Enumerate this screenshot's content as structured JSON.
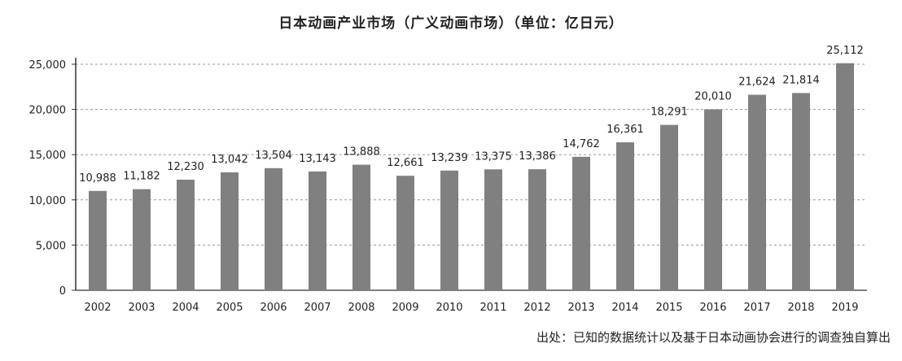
{
  "chart_data": {
    "type": "bar",
    "title": "日本动画产业市场（广义动画市场）（单位：亿日元）",
    "categories": [
      "2002",
      "2003",
      "2004",
      "2005",
      "2006",
      "2007",
      "2008",
      "2009",
      "2010",
      "2011",
      "2012",
      "2013",
      "2014",
      "2015",
      "2016",
      "2017",
      "2018",
      "2019"
    ],
    "values": [
      10988,
      11182,
      12230,
      13042,
      13504,
      13143,
      13888,
      12661,
      13239,
      13375,
      13386,
      14762,
      16361,
      18291,
      20010,
      21624,
      21814,
      25112
    ],
    "data_labels": [
      "10,988",
      "11,182",
      "12,230",
      "13,042",
      "13,504",
      "13,143",
      "13,888",
      "12,661",
      "13,239",
      "13,375",
      "13,386",
      "14,762",
      "16,361",
      "18,291",
      "20,010",
      "21,624",
      "21,814",
      "25,112"
    ],
    "y_ticks": [
      "0",
      "5,000",
      "10,000",
      "15,000",
      "20,000",
      "25,000"
    ],
    "ylim": [
      0,
      25000
    ],
    "grid": true,
    "bar_color": "#808080",
    "xlabel": "",
    "ylabel": ""
  },
  "source_note": "出处：已知的数据统计以及基于日本动画协会进行的调查独自算出"
}
